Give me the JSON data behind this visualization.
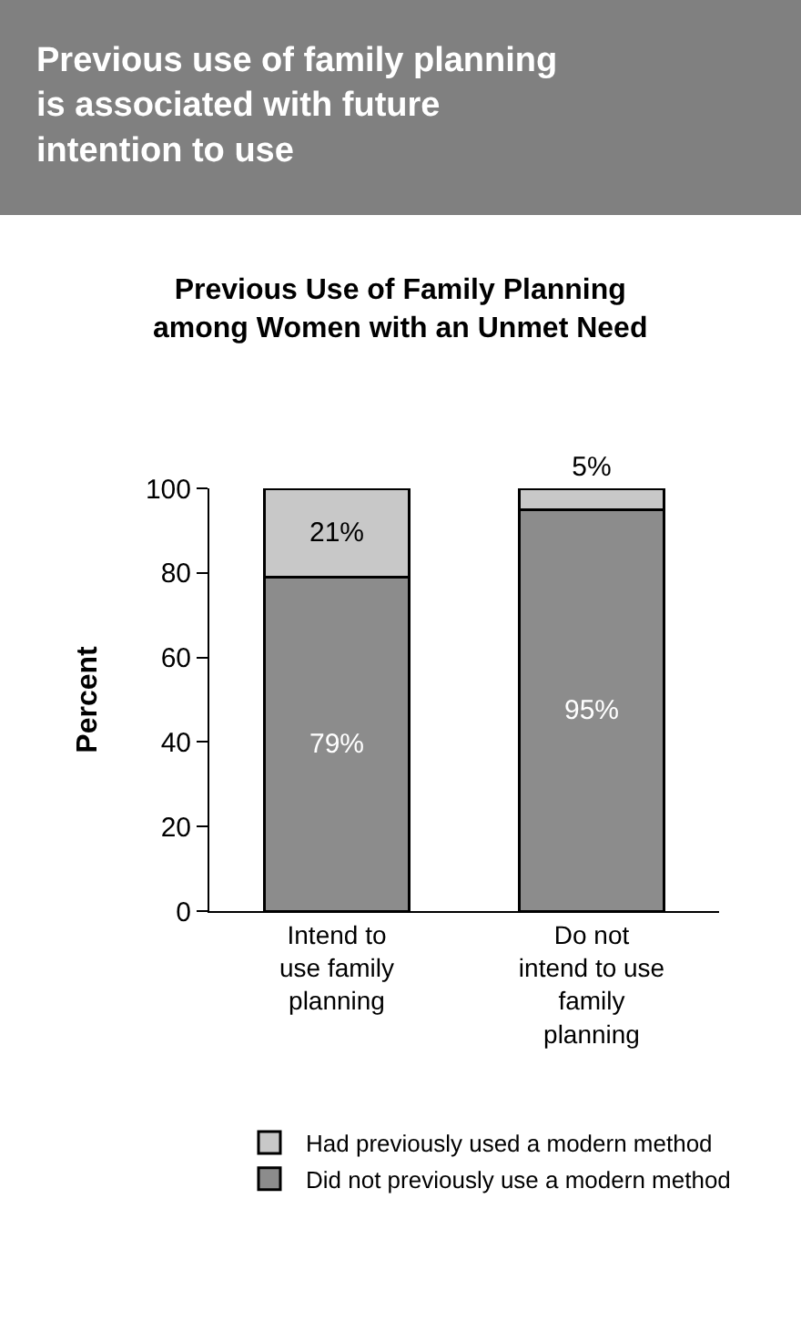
{
  "chart_data": {
    "type": "bar",
    "title": "Previous use of family planning is associated with future intention to use",
    "subtitle": "Previous Use of Family Planning among Women with an Unmet Need",
    "ylabel": "Percent",
    "categories": [
      "Intend to\nuse family\nplanning",
      "Do not\nintend to use\nfamily\nplanning"
    ],
    "stacked": true,
    "series": [
      {
        "name": "Did not previously use a modern method",
        "color": "#8c8c8c",
        "values": [
          79,
          95
        ],
        "value_labels": [
          "79%",
          "95%"
        ]
      },
      {
        "name": "Had previously used a modern method",
        "color": "#c8c8c8",
        "values": [
          21,
          5
        ],
        "value_labels": [
          "21%",
          "5%"
        ]
      }
    ],
    "ylim": [
      0,
      100
    ],
    "yticks": [
      0,
      20,
      40,
      60,
      80,
      100
    ],
    "legend": "bottom"
  }
}
